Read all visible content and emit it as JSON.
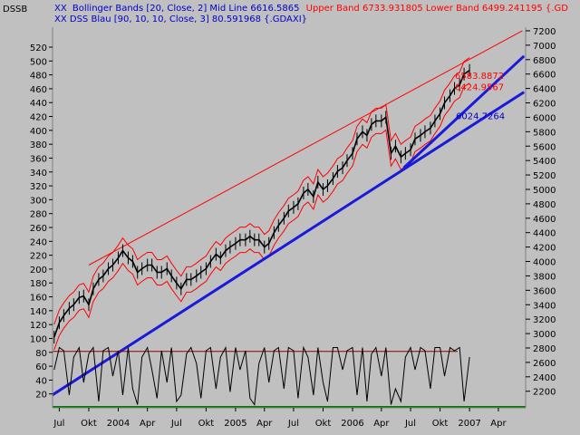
{
  "window": {
    "title": "DSSB"
  },
  "legend": {
    "line1_prefix": "XX",
    "bollinger_label": "Bollinger Bands [20, Close, 2] Mid Line 6616.5865",
    "bands_label": "Upper Band 6733.931805 Lower Band 6499.241195 {.GD",
    "line2": "XX DSS Blau [90, 10, 10, Close, 3] 80.591968 {.GDAXI}"
  },
  "colors": {
    "background": "#c0c0c0",
    "plot_background": "#c0c0c0",
    "price": "#000000",
    "bollinger": "#ff0000",
    "upper_trend": "#ff0000",
    "trend_blue": "#1a1adc",
    "price_label_red": "#ff0000",
    "price_label_blue": "#0000cc",
    "oscillator": "#000000",
    "osc_upper_line": "#8b0000",
    "osc_lower_line": "#007700",
    "axis_text": "#000000"
  },
  "annotations": [
    {
      "text": "6583.8872",
      "color": "#ff0000"
    },
    {
      "text": "6424.9567",
      "color": "#ff0000"
    },
    {
      "text": "6024.7264",
      "color": "#0000cc"
    }
  ],
  "chart_data": {
    "type": "line",
    "title": "",
    "x_tick_labels": [
      "Jul",
      "Okt",
      "2004",
      "Apr",
      "Jul",
      "Okt",
      "2005",
      "Apr",
      "Jul",
      "Okt",
      "2006",
      "Apr",
      "Jul",
      "Okt",
      "2007",
      "Apr"
    ],
    "x_tick_positions": [
      "2003-07",
      "2003-10",
      "2004-01",
      "2004-04",
      "2004-07",
      "2004-10",
      "2005-01",
      "2005-04",
      "2005-07",
      "2005-10",
      "2006-01",
      "2006-04",
      "2006-07",
      "2006-10",
      "2007-01",
      "2007-04"
    ],
    "left_axis": {
      "ticks": [
        20,
        40,
        60,
        80,
        100,
        120,
        140,
        160,
        180,
        200,
        220,
        240,
        260,
        280,
        300,
        320,
        340,
        360,
        380,
        400,
        420,
        440,
        460,
        480,
        500,
        520
      ]
    },
    "right_axis": {
      "ticks": [
        2200,
        2400,
        2600,
        2800,
        3000,
        3200,
        3400,
        3600,
        3800,
        4000,
        4200,
        4400,
        4600,
        4800,
        5000,
        5200,
        5400,
        5600,
        5800,
        6000,
        6200,
        6400,
        6600,
        6800,
        7000,
        7200
      ],
      "range": [
        1970,
        7250
      ]
    },
    "oscillator_range": [
      0,
      100
    ],
    "oscillator_levels": {
      "upper": 89,
      "lower": 0
    },
    "series": [
      {
        "name": ".GDAXI",
        "x": [
          "2003-06-15",
          "2003-07-01",
          "2003-07-15",
          "2003-08-01",
          "2003-08-15",
          "2003-09-01",
          "2003-09-15",
          "2003-10-01",
          "2003-10-15",
          "2003-11-01",
          "2003-11-15",
          "2003-12-01",
          "2003-12-15",
          "2004-01-01",
          "2004-01-15",
          "2004-02-01",
          "2004-02-15",
          "2004-03-01",
          "2004-03-15",
          "2004-04-01",
          "2004-04-15",
          "2004-05-01",
          "2004-05-15",
          "2004-06-01",
          "2004-06-15",
          "2004-07-01",
          "2004-07-15",
          "2004-08-01",
          "2004-08-15",
          "2004-09-01",
          "2004-09-15",
          "2004-10-01",
          "2004-10-15",
          "2004-11-01",
          "2004-11-15",
          "2004-12-01",
          "2004-12-15",
          "2005-01-01",
          "2005-01-15",
          "2005-02-01",
          "2005-02-15",
          "2005-03-01",
          "2005-03-15",
          "2005-04-01",
          "2005-04-15",
          "2005-05-01",
          "2005-05-15",
          "2005-06-01",
          "2005-06-15",
          "2005-07-01",
          "2005-07-15",
          "2005-08-01",
          "2005-08-15",
          "2005-09-01",
          "2005-09-15",
          "2005-10-01",
          "2005-10-15",
          "2005-11-01",
          "2005-11-15",
          "2005-12-01",
          "2005-12-15",
          "2006-01-01",
          "2006-01-15",
          "2006-02-01",
          "2006-02-15",
          "2006-03-01",
          "2006-03-15",
          "2006-04-01",
          "2006-04-15",
          "2006-05-01",
          "2006-05-15",
          "2006-06-01",
          "2006-06-15",
          "2006-07-01",
          "2006-07-15",
          "2006-08-01",
          "2006-08-15",
          "2006-09-01",
          "2006-09-15",
          "2006-10-01",
          "2006-10-15",
          "2006-11-01",
          "2006-11-15",
          "2006-12-01",
          "2006-12-15",
          "2007-01-01"
        ],
        "values": [
          2950,
          3150,
          3250,
          3350,
          3400,
          3500,
          3520,
          3400,
          3620,
          3750,
          3800,
          3900,
          3950,
          4050,
          4150,
          4050,
          4000,
          3850,
          3900,
          3950,
          3950,
          3850,
          3850,
          3900,
          3800,
          3700,
          3620,
          3750,
          3750,
          3800,
          3850,
          3900,
          4000,
          4100,
          4050,
          4150,
          4200,
          4250,
          4300,
          4300,
          4350,
          4300,
          4300,
          4200,
          4250,
          4400,
          4500,
          4600,
          4700,
          4750,
          4800,
          4950,
          5000,
          4900,
          5100,
          5000,
          5050,
          5150,
          5250,
          5300,
          5400,
          5500,
          5700,
          5800,
          5750,
          5900,
          5950,
          5950,
          6000,
          5500,
          5600,
          5450,
          5500,
          5550,
          5700,
          5750,
          5800,
          5850,
          5950,
          6050,
          6200,
          6300,
          6400,
          6450,
          6600,
          6650
        ]
      }
    ],
    "oscillator": {
      "name": "DSS Blau",
      "values": [
        60,
        95,
        90,
        20,
        80,
        95,
        40,
        85,
        95,
        10,
        90,
        95,
        50,
        90,
        20,
        95,
        30,
        5,
        80,
        95,
        60,
        15,
        90,
        40,
        95,
        10,
        20,
        85,
        95,
        70,
        15,
        90,
        95,
        30,
        80,
        95,
        25,
        95,
        60,
        90,
        15,
        5,
        70,
        95,
        40,
        90,
        95,
        30,
        95,
        90,
        15,
        95,
        80,
        20,
        95,
        40,
        10,
        95,
        95,
        60,
        90,
        95,
        20,
        95,
        10,
        85,
        95,
        50,
        95,
        5,
        30,
        10,
        80,
        95,
        60,
        95,
        90,
        30,
        95,
        95,
        50,
        95,
        90,
        95,
        10,
        80
      ]
    }
  }
}
